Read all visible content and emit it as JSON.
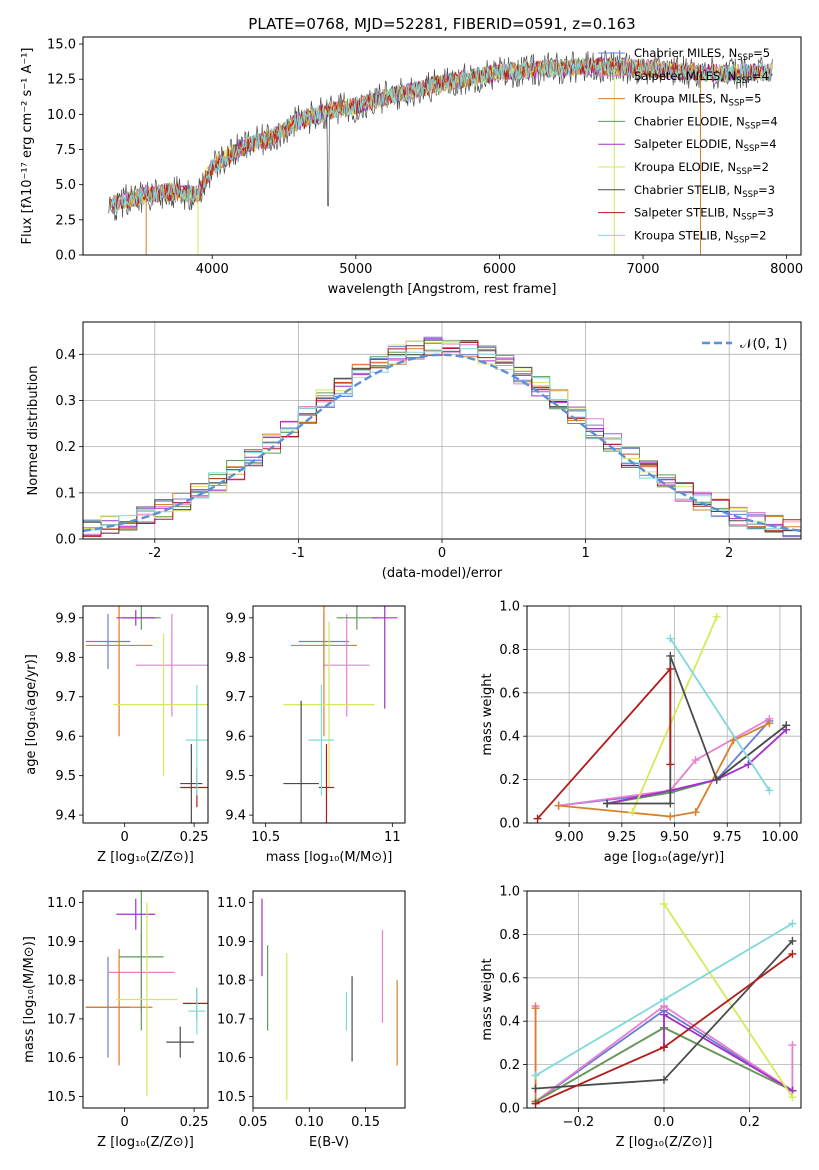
{
  "chart_data": [
    {
      "id": "spectrum",
      "type": "line",
      "title": "PLATE=0768, MJD=52281, FIBERID=0591, z=0.163",
      "xlabel": "wavelength [Angstrom, rest frame]",
      "ylabel": "Flux [fλ10⁻¹⁷ erg cm⁻² s⁻¹ A⁻¹]",
      "xlim": [
        3100,
        8100
      ],
      "ylim": [
        0,
        15.5
      ],
      "xticks": [
        4000,
        5000,
        6000,
        7000,
        8000
      ],
      "yticks": [
        0.0,
        2.5,
        5.0,
        7.5,
        10.0,
        12.5,
        15.0
      ],
      "grid": false,
      "legend_position": "top-right",
      "continuum": {
        "x": [
          3300,
          3500,
          3700,
          3900,
          4000,
          4200,
          4400,
          4600,
          4800,
          5000,
          5200,
          5400,
          5600,
          5800,
          6000,
          6200,
          6400,
          6600,
          6800,
          7000,
          7200,
          7400,
          7600,
          7800
        ],
        "y": [
          3.5,
          4.2,
          4.5,
          4.3,
          6.3,
          7.6,
          8.3,
          9.5,
          10.2,
          10.6,
          11.2,
          11.7,
          12.2,
          12.6,
          13.0,
          13.1,
          13.3,
          13.4,
          13.4,
          13.3,
          13.1,
          13.0,
          12.9,
          13.0
        ]
      },
      "series": [
        {
          "name": "Chabrier MILES, N",
          "sub": "SSP",
          "suffix": "=5",
          "color": "#6a7fd6"
        },
        {
          "name": "Salpeter MILES, N",
          "sub": "SSP",
          "suffix": "=4",
          "color": "#e87fcf"
        },
        {
          "name": "Kroupa MILES, N",
          "sub": "SSP",
          "suffix": "=5",
          "color": "#d97f2a"
        },
        {
          "name": "Chabrier ELODIE, N",
          "sub": "SSP",
          "suffix": "=4",
          "color": "#5f9a5f"
        },
        {
          "name": "Salpeter ELODIE, N",
          "sub": "SSP",
          "suffix": "=4",
          "color": "#a330c9"
        },
        {
          "name": "Kroupa ELODIE, N",
          "sub": "SSP",
          "suffix": "=2",
          "color": "#d7e85a"
        },
        {
          "name": "Chabrier STELIB, N",
          "sub": "SSP",
          "suffix": "=3",
          "color": "#4b4b4b"
        },
        {
          "name": "Salpeter STELIB, N",
          "sub": "SSP",
          "suffix": "=3",
          "color": "#b31b1b"
        },
        {
          "name": "Kroupa STELIB, N",
          "sub": "SSP",
          "suffix": "=2",
          "color": "#7fd9d9"
        }
      ]
    },
    {
      "id": "residuals",
      "type": "step",
      "xlabel": "(data-model)/error",
      "ylabel": "Normed distribution",
      "xlim": [
        -2.5,
        2.5
      ],
      "ylim": [
        0,
        0.47
      ],
      "xticks": [
        -2,
        -1,
        0,
        1,
        2
      ],
      "yticks": [
        0.0,
        0.1,
        0.2,
        0.3,
        0.4
      ],
      "grid": true,
      "legend_position": "top-right",
      "legend_label": "𝒩(0, 1)",
      "gaussian": {
        "mean": 0,
        "sigma": 1,
        "color": "#5b8fd6"
      }
    },
    {
      "id": "z-age",
      "type": "errorbar",
      "xlabel": "Z [log₁₀(Z/Z⊙)]",
      "ylabel": "age  [log₁₀(age/yr)]",
      "xlim": [
        -0.15,
        0.3
      ],
      "ylim": [
        9.38,
        9.93
      ],
      "xticks": [
        0.0,
        0.25
      ],
      "yticks": [
        9.4,
        9.5,
        9.6,
        9.7,
        9.8,
        9.9
      ],
      "points": [
        {
          "x": -0.06,
          "y": 9.84,
          "xerr": 0.08,
          "yerr": 0.07,
          "color": "#6a7fd6"
        },
        {
          "x": 0.17,
          "y": 9.78,
          "xerr": 0.13,
          "yerr": 0.13,
          "color": "#e87fcf"
        },
        {
          "x": -0.02,
          "y": 9.83,
          "xerr": 0.12,
          "yerr": 0.23,
          "color": "#d97f2a"
        },
        {
          "x": 0.06,
          "y": 9.9,
          "xerr": 0.07,
          "yerr": 0.03,
          "color": "#5f9a5f"
        },
        {
          "x": 0.04,
          "y": 9.9,
          "xerr": 0.07,
          "yerr": 0.02,
          "color": "#a330c9"
        },
        {
          "x": 0.14,
          "y": 9.68,
          "xerr": 0.18,
          "yerr": 0.18,
          "color": "#d7e85a"
        },
        {
          "x": 0.24,
          "y": 9.48,
          "xerr": 0.04,
          "yerr": 0.1,
          "color": "#4b4b4b"
        },
        {
          "x": 0.26,
          "y": 9.47,
          "xerr": 0.06,
          "yerr": 0.05,
          "color": "#b31b1b"
        },
        {
          "x": 0.26,
          "y": 9.59,
          "xerr": 0.04,
          "yerr": 0.14,
          "color": "#7fd9d9"
        }
      ]
    },
    {
      "id": "mass-age",
      "type": "errorbar",
      "xlabel": "mass [log₁₀(M/M⊙)]",
      "ylabel": "",
      "xlim": [
        10.45,
        11.05
      ],
      "ylim": [
        9.38,
        9.93
      ],
      "xticks": [
        10.5,
        11.0
      ],
      "yticks": [
        9.4,
        9.5,
        9.6,
        9.7,
        9.8,
        9.9
      ],
      "points": [
        {
          "x": 10.73,
          "y": 9.84,
          "xerr": 0.1,
          "yerr": 0.07,
          "color": "#6a7fd6"
        },
        {
          "x": 10.82,
          "y": 9.78,
          "xerr": 0.09,
          "yerr": 0.13,
          "color": "#e87fcf"
        },
        {
          "x": 10.73,
          "y": 9.83,
          "xerr": 0.13,
          "yerr": 0.23,
          "color": "#d97f2a"
        },
        {
          "x": 10.86,
          "y": 9.9,
          "xerr": 0.08,
          "yerr": 0.03,
          "color": "#5f9a5f"
        },
        {
          "x": 10.97,
          "y": 9.9,
          "xerr": 0.05,
          "yerr": 0.23,
          "color": "#a330c9"
        },
        {
          "x": 10.75,
          "y": 9.68,
          "xerr": 0.18,
          "yerr": 0.21,
          "color": "#d7e85a"
        },
        {
          "x": 10.64,
          "y": 9.48,
          "xerr": 0.07,
          "yerr": 0.21,
          "color": "#4b4b4b"
        },
        {
          "x": 10.74,
          "y": 9.47,
          "xerr": 0.03,
          "yerr": 0.11,
          "color": "#b31b1b"
        },
        {
          "x": 10.72,
          "y": 9.59,
          "xerr": 0.05,
          "yerr": 0.14,
          "color": "#7fd9d9"
        }
      ]
    },
    {
      "id": "age-weight",
      "type": "line",
      "xlabel": "age  [log₁₀(age/yr)]",
      "ylabel": "mass weight",
      "xlim": [
        8.8,
        10.1
      ],
      "ylim": [
        0,
        1.0
      ],
      "xticks": [
        9.0,
        9.25,
        9.5,
        9.75,
        10.0
      ],
      "xtick_labels": [
        "9.00",
        "9.25",
        "9.50",
        "9.75",
        "10.00"
      ],
      "yticks": [
        0.0,
        0.2,
        0.4,
        0.6,
        0.8,
        1.0
      ],
      "grid": true,
      "series": [
        {
          "color": "#6a7fd6",
          "x": [
            8.95,
            9.48,
            9.7,
            9.95
          ],
          "y": [
            0.08,
            0.14,
            0.2,
            0.47
          ]
        },
        {
          "color": "#e87fcf",
          "x": [
            8.95,
            9.48,
            9.6,
            9.95
          ],
          "y": [
            0.08,
            0.15,
            0.29,
            0.48
          ]
        },
        {
          "color": "#d97f2a",
          "x": [
            8.95,
            9.48,
            9.6,
            9.78,
            9.95
          ],
          "y": [
            0.08,
            0.03,
            0.05,
            0.38,
            0.46
          ]
        },
        {
          "color": "#5f9a5f",
          "x": [
            9.18,
            9.48,
            9.7,
            10.03
          ],
          "y": [
            0.09,
            0.14,
            0.2,
            0.45
          ]
        },
        {
          "color": "#a330c9",
          "x": [
            9.18,
            9.48,
            9.7,
            9.85,
            10.03
          ],
          "y": [
            0.09,
            0.15,
            0.2,
            0.27,
            0.43
          ]
        },
        {
          "color": "#d7e85a",
          "x": [
            9.3,
            9.7
          ],
          "y": [
            0.05,
            0.95
          ]
        },
        {
          "color": "#4b4b4b",
          "x": [
            9.18,
            9.48,
            9.48,
            9.7,
            10.03
          ],
          "y": [
            0.09,
            0.09,
            0.77,
            0.2,
            0.45
          ]
        },
        {
          "color": "#b31b1b",
          "x": [
            8.85,
            9.48,
            9.48
          ],
          "y": [
            0.02,
            0.71,
            0.27
          ]
        },
        {
          "color": "#7fd9d9",
          "x": [
            9.48,
            9.95
          ],
          "y": [
            0.85,
            0.15
          ]
        }
      ]
    },
    {
      "id": "z-mass",
      "type": "errorbar",
      "xlabel": "Z [log₁₀(Z/Z⊙)]",
      "ylabel": "mass [log₁₀(M/M⊙)]",
      "xlim": [
        -0.15,
        0.3
      ],
      "ylim": [
        10.47,
        11.03
      ],
      "xticks": [
        0.0,
        0.25
      ],
      "yticks": [
        10.5,
        10.6,
        10.7,
        10.8,
        10.9,
        11.0
      ],
      "points": [
        {
          "x": -0.06,
          "y": 10.73,
          "xerr": 0.08,
          "yerr": 0.13,
          "color": "#6a7fd6"
        },
        {
          "x": 0.06,
          "y": 10.82,
          "xerr": 0.12,
          "yerr": 0.1,
          "color": "#e87fcf"
        },
        {
          "x": -0.02,
          "y": 10.73,
          "xerr": 0.12,
          "yerr": 0.15,
          "color": "#d97f2a"
        },
        {
          "x": 0.06,
          "y": 10.86,
          "xerr": 0.08,
          "yerr": 0.19,
          "color": "#5f9a5f"
        },
        {
          "x": 0.04,
          "y": 10.97,
          "xerr": 0.07,
          "yerr": 0.04,
          "color": "#a330c9"
        },
        {
          "x": 0.08,
          "y": 10.75,
          "xerr": 0.11,
          "yerr": 0.25,
          "color": "#d7e85a"
        },
        {
          "x": 0.2,
          "y": 10.64,
          "xerr": 0.05,
          "yerr": 0.04,
          "color": "#4b4b4b"
        },
        {
          "x": 0.26,
          "y": 10.74,
          "xerr": 0.05,
          "yerr": 0.04,
          "color": "#b31b1b"
        },
        {
          "x": 0.26,
          "y": 10.72,
          "xerr": 0.03,
          "yerr": 0.06,
          "color": "#7fd9d9"
        }
      ]
    },
    {
      "id": "ebv-mass",
      "type": "errorbar",
      "xlabel": "E(B-V)",
      "ylabel": "",
      "xlim": [
        0.05,
        0.185
      ],
      "ylim": [
        10.47,
        11.03
      ],
      "xticks": [
        0.05,
        0.1,
        0.15
      ],
      "xtick_labels": [
        "0.05",
        "0.10",
        "0.15"
      ],
      "yticks": [
        10.5,
        10.6,
        10.7,
        10.8,
        10.9,
        11.0
      ],
      "points": [
        {
          "x": 0.058,
          "y": 10.91,
          "xerr": 0.0,
          "yerr": 0.1,
          "color": "#a330c9"
        },
        {
          "x": 0.063,
          "y": 10.78,
          "xerr": 0.0,
          "yerr": 0.11,
          "color": "#5f9a5f"
        },
        {
          "x": 0.08,
          "y": 10.68,
          "xerr": 0.0,
          "yerr": 0.19,
          "color": "#d7e85a"
        },
        {
          "x": 0.133,
          "y": 10.72,
          "xerr": 0.0,
          "yerr": 0.05,
          "color": "#7fd9d9"
        },
        {
          "x": 0.138,
          "y": 10.7,
          "xerr": 0.0,
          "yerr": 0.11,
          "color": "#4b4b4b"
        },
        {
          "x": 0.165,
          "y": 10.81,
          "xerr": 0.0,
          "yerr": 0.12,
          "color": "#e87fcf"
        },
        {
          "x": 0.178,
          "y": 10.69,
          "xerr": 0.0,
          "yerr": 0.11,
          "color": "#d97f2a"
        }
      ]
    },
    {
      "id": "z-weight",
      "type": "line",
      "xlabel": "Z [log₁₀(Z/Z⊙)]",
      "ylabel": "mass weight",
      "xlim": [
        -0.32,
        0.32
      ],
      "ylim": [
        0,
        1.0
      ],
      "xticks": [
        -0.2,
        0.0,
        0.2
      ],
      "xtick_labels": [
        "−0.2",
        "0.0",
        "0.2"
      ],
      "yticks": [
        0.0,
        0.2,
        0.4,
        0.6,
        0.8,
        1.0
      ],
      "grid": true,
      "series": [
        {
          "color": "#6a7fd6",
          "x": [
            -0.3,
            0.0,
            0.3
          ],
          "y": [
            0.03,
            0.45,
            0.08
          ]
        },
        {
          "color": "#e87fcf",
          "x": [
            -0.3,
            -0.3,
            0.0,
            0.3,
            0.3
          ],
          "y": [
            0.47,
            0.03,
            0.47,
            0.08,
            0.29
          ]
        },
        {
          "color": "#d97f2a",
          "x": [
            -0.3,
            -0.3,
            0.0,
            0.3
          ],
          "y": [
            0.46,
            0.03,
            0.37,
            0.08
          ]
        },
        {
          "color": "#5f9a5f",
          "x": [
            -0.3,
            0.0,
            0.3
          ],
          "y": [
            0.03,
            0.37,
            0.08
          ]
        },
        {
          "color": "#a330c9",
          "x": [
            0.0,
            0.0,
            0.3
          ],
          "y": [
            0.28,
            0.43,
            0.08
          ]
        },
        {
          "color": "#d7e85a",
          "x": [
            0.0,
            0.3
          ],
          "y": [
            0.94,
            0.05
          ]
        },
        {
          "color": "#4b4b4b",
          "x": [
            -0.3,
            0.0,
            0.3
          ],
          "y": [
            0.09,
            0.13,
            0.77
          ]
        },
        {
          "color": "#b31b1b",
          "x": [
            -0.3,
            0.0,
            0.3
          ],
          "y": [
            0.02,
            0.28,
            0.71
          ]
        },
        {
          "color": "#7fd9d9",
          "x": [
            -0.3,
            0.0,
            0.3
          ],
          "y": [
            0.15,
            0.5,
            0.85
          ]
        }
      ]
    }
  ]
}
